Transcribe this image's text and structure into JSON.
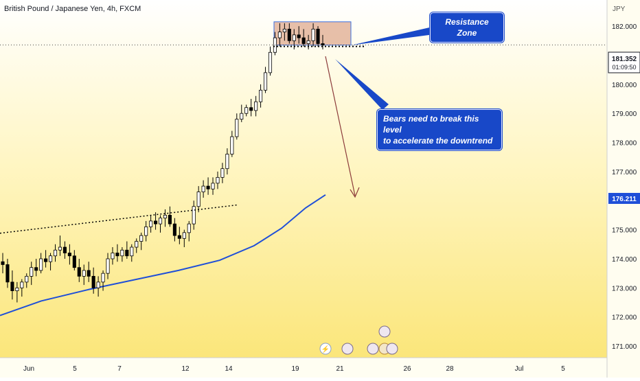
{
  "header": {
    "symbol": "British Pound / Japanese Yen, 4h, FXCM"
  },
  "axis": {
    "currency": "JPY",
    "y_ticks": [
      "182.000",
      "181.000",
      "180.000",
      "179.000",
      "178.000",
      "177.000",
      "176.000",
      "175.000",
      "174.000",
      "173.000",
      "172.000",
      "171.000"
    ],
    "x_ticks": [
      "Jun",
      "5",
      "7",
      "12",
      "14",
      "19",
      "21",
      "26",
      "28",
      "Jul",
      "5"
    ]
  },
  "price_badge": {
    "price": "181.352",
    "countdown": "01:09:50"
  },
  "ma_badge": {
    "value": "176.211"
  },
  "annotations": {
    "resistance": "Resistance Zone",
    "bears_line1": "Bears need to break this level",
    "bears_line2": "to accelerate the downtrend"
  },
  "colors": {
    "bg_top": "#ffffff",
    "bg_bottom": "#fbe77a",
    "up": "#ffffff",
    "down": "#000000",
    "ma": "#1f4fd8",
    "zone": "#e3b49b",
    "arrow": "#8b3a3a",
    "callout": "#1848c8"
  },
  "chart_data": {
    "type": "candlestick",
    "title": "British Pound / Japanese Yen, 4h, FXCM",
    "ylabel": "JPY",
    "ylim": [
      170.6,
      182.9
    ],
    "current_price": 181.352,
    "moving_average_last": 176.211,
    "resistance_zone": [
      181.35,
      182.15
    ],
    "dates": [
      "Jun",
      "5",
      "7",
      "12",
      "14",
      "19",
      "21",
      "26",
      "28",
      "Jul",
      "5"
    ],
    "ohlc": [
      [
        173.9,
        174.2,
        173.5,
        173.8
      ],
      [
        173.8,
        174.0,
        173.0,
        173.2
      ],
      [
        173.2,
        173.6,
        172.6,
        172.9
      ],
      [
        172.9,
        173.2,
        172.5,
        173.0
      ],
      [
        173.0,
        173.3,
        172.7,
        173.2
      ],
      [
        173.2,
        173.5,
        173.0,
        173.4
      ],
      [
        173.4,
        173.9,
        173.1,
        173.7
      ],
      [
        173.7,
        174.0,
        173.4,
        173.6
      ],
      [
        173.6,
        174.2,
        173.5,
        174.0
      ],
      [
        174.0,
        174.3,
        173.7,
        173.9
      ],
      [
        173.9,
        174.2,
        173.6,
        174.1
      ],
      [
        174.1,
        174.5,
        173.9,
        174.3
      ],
      [
        174.3,
        174.8,
        174.1,
        174.4
      ],
      [
        174.4,
        174.6,
        174.0,
        174.2
      ],
      [
        174.2,
        174.5,
        173.8,
        174.1
      ],
      [
        174.1,
        174.3,
        173.6,
        173.7
      ],
      [
        173.7,
        174.0,
        173.2,
        173.4
      ],
      [
        173.4,
        173.8,
        173.1,
        173.6
      ],
      [
        173.6,
        173.9,
        173.2,
        173.4
      ],
      [
        173.4,
        173.7,
        172.8,
        173.0
      ],
      [
        173.0,
        173.4,
        172.7,
        173.2
      ],
      [
        173.2,
        173.6,
        172.9,
        173.5
      ],
      [
        173.5,
        174.2,
        173.3,
        174.0
      ],
      [
        174.0,
        174.4,
        173.8,
        174.2
      ],
      [
        174.2,
        174.5,
        173.9,
        174.1
      ],
      [
        174.1,
        174.4,
        173.9,
        174.3
      ],
      [
        174.3,
        174.6,
        174.0,
        174.1
      ],
      [
        174.1,
        174.5,
        173.9,
        174.4
      ],
      [
        174.4,
        174.7,
        174.2,
        174.6
      ],
      [
        174.6,
        174.9,
        174.3,
        174.8
      ],
      [
        174.8,
        175.3,
        174.6,
        175.1
      ],
      [
        175.1,
        175.5,
        174.9,
        175.3
      ],
      [
        175.3,
        175.6,
        175.0,
        175.2
      ],
      [
        175.2,
        175.5,
        174.9,
        175.4
      ],
      [
        175.4,
        175.7,
        175.1,
        175.5
      ],
      [
        175.5,
        175.8,
        175.1,
        175.2
      ],
      [
        175.2,
        175.4,
        174.6,
        174.8
      ],
      [
        174.8,
        175.1,
        174.5,
        174.7
      ],
      [
        174.7,
        175.0,
        174.4,
        174.9
      ],
      [
        174.9,
        175.3,
        174.6,
        175.2
      ],
      [
        175.2,
        176.0,
        175.0,
        175.8
      ],
      [
        175.8,
        176.5,
        175.6,
        176.3
      ],
      [
        176.3,
        176.7,
        176.1,
        176.5
      ],
      [
        176.5,
        176.8,
        176.2,
        176.4
      ],
      [
        176.4,
        176.8,
        176.2,
        176.6
      ],
      [
        176.6,
        177.0,
        176.4,
        176.8
      ],
      [
        176.8,
        177.3,
        176.6,
        177.1
      ],
      [
        177.1,
        177.8,
        176.9,
        177.6
      ],
      [
        177.6,
        178.4,
        177.5,
        178.2
      ],
      [
        178.2,
        179.0,
        178.1,
        178.8
      ],
      [
        178.8,
        179.3,
        178.7,
        179.0
      ],
      [
        179.0,
        179.3,
        178.9,
        179.2
      ],
      [
        179.2,
        179.5,
        178.9,
        179.1
      ],
      [
        179.1,
        179.6,
        178.9,
        179.4
      ],
      [
        179.4,
        180.0,
        179.2,
        179.8
      ],
      [
        179.8,
        180.6,
        179.7,
        180.4
      ],
      [
        180.4,
        181.3,
        180.3,
        181.1
      ],
      [
        181.1,
        181.8,
        181.0,
        181.6
      ],
      [
        181.6,
        182.1,
        181.3,
        181.8
      ],
      [
        181.8,
        182.1,
        181.5,
        181.9
      ],
      [
        181.9,
        182.1,
        181.4,
        181.5
      ],
      [
        181.5,
        181.9,
        181.2,
        181.7
      ],
      [
        181.7,
        182.0,
        181.4,
        181.6
      ],
      [
        181.6,
        181.9,
        181.3,
        181.4
      ],
      [
        181.4,
        181.7,
        181.2,
        181.5
      ],
      [
        181.5,
        182.1,
        181.3,
        181.9
      ],
      [
        181.9,
        182.0,
        181.3,
        181.4
      ],
      [
        181.4,
        181.7,
        181.2,
        181.35
      ]
    ]
  }
}
